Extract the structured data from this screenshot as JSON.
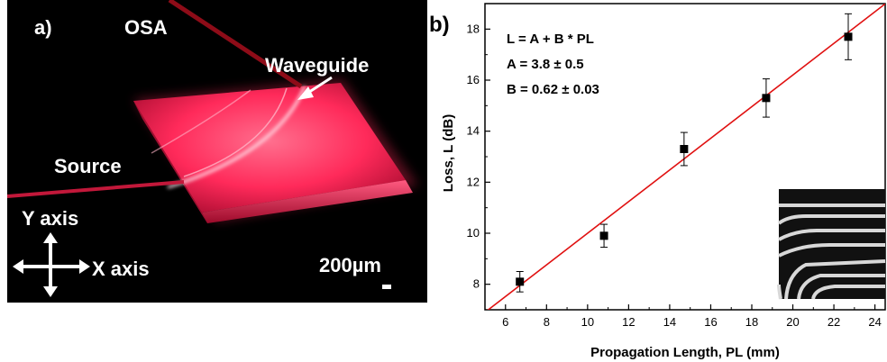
{
  "panel_a": {
    "label": "a)",
    "osa_label": "OSA",
    "waveguide_label": "Waveguide",
    "source_label": "Source",
    "y_axis_label": "Y axis",
    "x_axis_label": "X axis",
    "scale_bar_label": "200µm",
    "colors": {
      "glow": "#ff2a5a",
      "beam": "#b01020",
      "background": "#000000"
    }
  },
  "panel_b": {
    "label": "b)",
    "equation": "L = A + B * PL",
    "param_a": "A = 3.8 ± 0.5",
    "param_b": "B = 0.62 ± 0.03",
    "colors": {
      "fit_line": "#e01010",
      "points": "#000000"
    }
  },
  "chart_data": {
    "type": "scatter",
    "xlabel": "Propagation Length, PL (mm)",
    "ylabel": "Loss, L (dB)",
    "xlim": [
      5,
      24.5
    ],
    "ylim": [
      7,
      19
    ],
    "x_ticks": [
      6,
      8,
      10,
      12,
      14,
      16,
      18,
      20,
      22,
      24
    ],
    "y_ticks": [
      8,
      10,
      12,
      14,
      16,
      18
    ],
    "grid": false,
    "series": [
      {
        "x": [
          6.7,
          10.8,
          14.7,
          18.7,
          22.7
        ],
        "y": [
          8.1,
          9.9,
          13.3,
          15.3,
          17.7
        ],
        "y_err": [
          0.4,
          0.45,
          0.65,
          0.75,
          0.9
        ]
      }
    ],
    "fit_line": {
      "intercept": 3.8,
      "slope": 0.62
    }
  }
}
